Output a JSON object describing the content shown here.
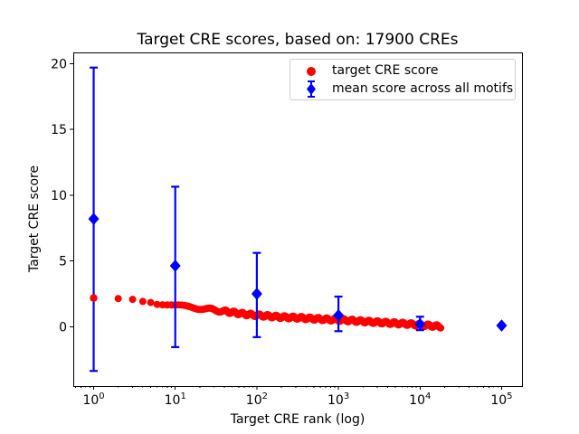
{
  "figure": {
    "background_color": "#ffffff",
    "text_color": "#000000"
  },
  "chart_data": {
    "type": "scatter",
    "title": "Target CRE scores, based on: 17900 CREs",
    "xlabel": "Target CRE rank (log)",
    "ylabel": "Target CRE score",
    "x_scale": "log",
    "xlim_log10": [
      -0.25,
      5.25
    ],
    "ylim": [
      -4.5,
      20.85
    ],
    "grid": false,
    "n_cres": 17900,
    "x_ticks": [
      {
        "value": 1,
        "base": "10",
        "exp": "0"
      },
      {
        "value": 10,
        "base": "10",
        "exp": "1"
      },
      {
        "value": 100,
        "base": "10",
        "exp": "2"
      },
      {
        "value": 1000,
        "base": "10",
        "exp": "3"
      },
      {
        "value": 10000,
        "base": "10",
        "exp": "4"
      },
      {
        "value": 100000,
        "base": "10",
        "exp": "5"
      }
    ],
    "y_ticks": [
      0,
      5,
      10,
      15,
      20
    ],
    "legend": {
      "position": "upper right",
      "entries": [
        {
          "label": "target CRE score",
          "marker": "circle",
          "color": "#ff0000"
        },
        {
          "label": "mean score across all motifs",
          "marker": "diamond-with-error-bar",
          "color": "#0000ff"
        }
      ]
    },
    "series": [
      {
        "name": "target CRE score",
        "type": "scatter",
        "marker": "circle",
        "color": "#ff0000",
        "n_points": 17900,
        "profile_points": [
          [
            1,
            2.19
          ],
          [
            2,
            2.15
          ],
          [
            3,
            2.09
          ],
          [
            4,
            1.93
          ],
          [
            5,
            1.85
          ],
          [
            6,
            1.79
          ],
          [
            8,
            1.68
          ],
          [
            10,
            1.6
          ],
          [
            15,
            1.5
          ],
          [
            20,
            1.42
          ],
          [
            30,
            1.28
          ],
          [
            50,
            1.1
          ],
          [
            70,
            0.97
          ],
          [
            100,
            0.88
          ],
          [
            150,
            0.8
          ],
          [
            200,
            0.74
          ],
          [
            300,
            0.7
          ],
          [
            500,
            0.62
          ],
          [
            700,
            0.57
          ],
          [
            1000,
            0.53
          ],
          [
            1500,
            0.47
          ],
          [
            2000,
            0.42
          ],
          [
            3000,
            0.35
          ],
          [
            5000,
            0.27
          ],
          [
            7000,
            0.22
          ],
          [
            10000,
            0.15
          ],
          [
            14000,
            0.08
          ],
          [
            17900,
            0.02
          ]
        ]
      },
      {
        "name": "mean score across all motifs",
        "type": "errorbar",
        "marker": "diamond",
        "color": "#0000ff",
        "points": [
          {
            "x": 1,
            "y": 8.2,
            "err_low": -3.35,
            "err_high": 19.7
          },
          {
            "x": 10,
            "y": 4.64,
            "err_low": -1.54,
            "err_high": 10.65
          },
          {
            "x": 100,
            "y": 2.51,
            "err_low": -0.78,
            "err_high": 5.62
          },
          {
            "x": 1000,
            "y": 0.88,
            "err_low": -0.33,
            "err_high": 2.3
          },
          {
            "x": 10000,
            "y": 0.2,
            "err_low": -0.25,
            "err_high": 0.77
          },
          {
            "x": 100000,
            "y": 0.1,
            "err_low": null,
            "err_high": null
          }
        ]
      }
    ]
  }
}
